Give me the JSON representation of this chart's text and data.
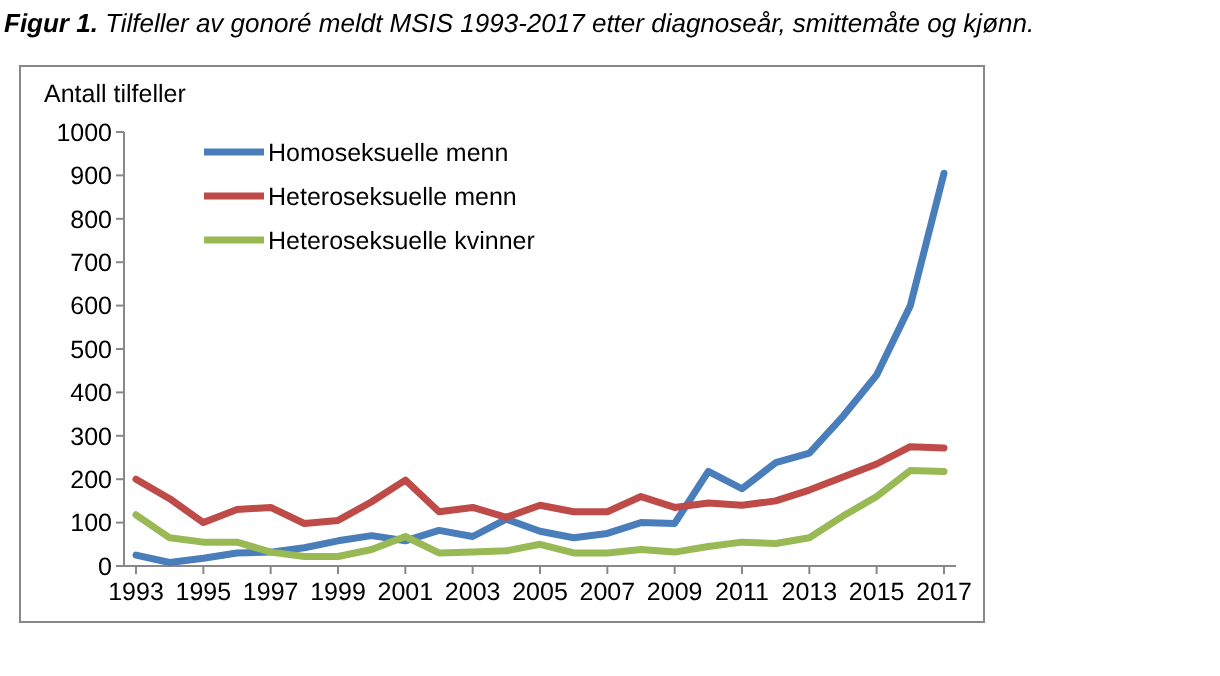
{
  "chart_data": {
    "type": "line",
    "title": "Figur 1. Tilfeller av gonoré meldt MSIS 1993-2017 etter diagnoseår, smittemåte og kjønn.",
    "ylabel": "Antall tilfeller",
    "categories": [
      "1993",
      null,
      "1995",
      null,
      "1997",
      null,
      "1999",
      null,
      "2001",
      null,
      "2003",
      null,
      "2005",
      null,
      "2007",
      null,
      "2009",
      null,
      "2011",
      null,
      "2013",
      null,
      "2015",
      null,
      "2017"
    ],
    "series": [
      {
        "name": "Homoseksuelle menn",
        "color": "#4a7ebb",
        "values": [
          25,
          8,
          18,
          30,
          32,
          42,
          58,
          70,
          58,
          82,
          68,
          108,
          80,
          65,
          75,
          100,
          98,
          218,
          178,
          238,
          260,
          345,
          440,
          600,
          905
        ]
      },
      {
        "name": "Heteroseksuelle menn",
        "color": "#be4b48",
        "values": [
          200,
          155,
          100,
          130,
          135,
          98,
          105,
          148,
          198,
          125,
          135,
          112,
          140,
          125,
          125,
          160,
          135,
          145,
          140,
          150,
          175,
          205,
          235,
          275,
          272
        ]
      },
      {
        "name": "Heteroseksuelle kvinner",
        "color": "#98b954",
        "values": [
          118,
          65,
          55,
          55,
          32,
          22,
          22,
          38,
          68,
          30,
          32,
          35,
          50,
          30,
          30,
          38,
          32,
          45,
          55,
          52,
          65,
          115,
          160,
          220,
          218
        ]
      }
    ],
    "ylim": [
      0,
      1000
    ],
    "yticks": [
      0,
      100,
      200,
      300,
      400,
      500,
      600,
      700,
      800,
      900,
      1000
    ],
    "grid": false,
    "legend": "top left",
    "marker": "none",
    "line_style": "solid"
  }
}
